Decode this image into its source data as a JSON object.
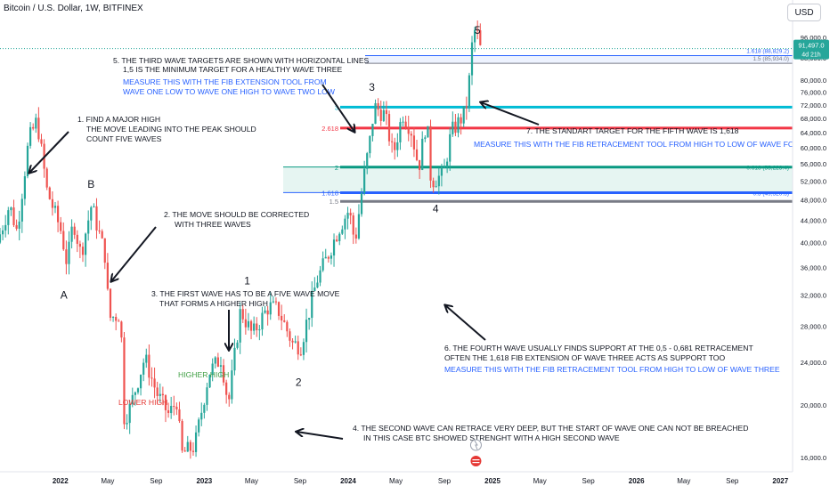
{
  "header": {
    "symbol_title": "Bitcoin / U.S. Dollar, 1W, BITFINEX",
    "currency": "USD"
  },
  "price_badge": {
    "price": "91,497.0",
    "countdown": "4d 21h"
  },
  "colors": {
    "up": "#26a69a",
    "down": "#ef5350",
    "label_text": "#131722",
    "blue_text": "#2962ff",
    "green_text": "#43a047",
    "red_text": "#e53935",
    "cyan_line": "#00bcd4",
    "red_line": "#f23645",
    "teal_line": "#089981",
    "blue_line": "#2962ff",
    "gray_line": "#787b86",
    "price_line": "#26a69a"
  },
  "chart_data": {
    "type": "candlestick",
    "y_scale": "log",
    "ylim": [
      15500,
      100000
    ],
    "x_range": [
      "2021-08-01",
      "2027-02-01"
    ],
    "y_ticks": [
      {
        "v": 96000,
        "label": "96,000.0"
      },
      {
        "v": 88000,
        "label": "88,000.0"
      },
      {
        "v": 80000,
        "label": "80,000.0"
      },
      {
        "v": 76000,
        "label": "76,000.0"
      },
      {
        "v": 72000,
        "label": "72,000.0"
      },
      {
        "v": 68000,
        "label": "68,000.0"
      },
      {
        "v": 64000,
        "label": "64,000.0"
      },
      {
        "v": 60000,
        "label": "60,000.0"
      },
      {
        "v": 56000,
        "label": "56,000.0"
      },
      {
        "v": 52000,
        "label": "52,000.0"
      },
      {
        "v": 48000,
        "label": "48,000.0"
      },
      {
        "v": 44000,
        "label": "44,000.0"
      },
      {
        "v": 40000,
        "label": "40,000.0"
      },
      {
        "v": 36000,
        "label": "36,000.0"
      },
      {
        "v": 32000,
        "label": "32,000.0"
      },
      {
        "v": 28000,
        "label": "28,000.0"
      },
      {
        "v": 24000,
        "label": "24,000.0"
      },
      {
        "v": 20000,
        "label": "20,000.0"
      },
      {
        "v": 16000,
        "label": "16,000.0"
      }
    ],
    "x_ticks": [
      {
        "date": "2022-01-01",
        "label": "2022",
        "bold": true
      },
      {
        "date": "2022-05-01",
        "label": "May",
        "bold": false
      },
      {
        "date": "2022-09-01",
        "label": "Sep",
        "bold": false
      },
      {
        "date": "2023-01-01",
        "label": "2023",
        "bold": true
      },
      {
        "date": "2023-05-01",
        "label": "May",
        "bold": false
      },
      {
        "date": "2023-09-01",
        "label": "Sep",
        "bold": false
      },
      {
        "date": "2024-01-01",
        "label": "2024",
        "bold": true
      },
      {
        "date": "2024-05-01",
        "label": "May",
        "bold": false
      },
      {
        "date": "2024-09-01",
        "label": "Sep",
        "bold": false
      },
      {
        "date": "2025-01-01",
        "label": "2025",
        "bold": true
      },
      {
        "date": "2025-05-01",
        "label": "May",
        "bold": false
      },
      {
        "date": "2025-09-01",
        "label": "Sep",
        "bold": false
      },
      {
        "date": "2026-01-01",
        "label": "2026",
        "bold": true
      },
      {
        "date": "2026-05-01",
        "label": "May",
        "bold": false
      },
      {
        "date": "2026-09-01",
        "label": "Sep",
        "bold": false
      },
      {
        "date": "2027-01-01",
        "label": "2027",
        "bold": true
      }
    ],
    "path_points": [
      [
        "2021-08-01",
        40000
      ],
      [
        "2021-09-01",
        47000
      ],
      [
        "2021-09-20",
        42000
      ],
      [
        "2021-10-20",
        62000
      ],
      [
        "2021-11-10",
        67500
      ],
      [
        "2021-12-05",
        50000
      ],
      [
        "2022-01-10",
        42000
      ],
      [
        "2022-01-25",
        36500
      ],
      [
        "2022-02-10",
        44000
      ],
      [
        "2022-03-01",
        38000
      ],
      [
        "2022-03-28",
        47000
      ],
      [
        "2022-05-01",
        38000
      ],
      [
        "2022-05-12",
        29000
      ],
      [
        "2022-06-10",
        29500
      ],
      [
        "2022-06-18",
        19000
      ],
      [
        "2022-07-01",
        19500
      ],
      [
        "2022-08-10",
        24500
      ],
      [
        "2022-09-10",
        21000
      ],
      [
        "2022-10-10",
        19200
      ],
      [
        "2022-11-01",
        20500
      ],
      [
        "2022-11-10",
        16200
      ],
      [
        "2022-12-15",
        16800
      ],
      [
        "2023-01-20",
        23000
      ],
      [
        "2023-02-20",
        24500
      ],
      [
        "2023-03-10",
        20000
      ],
      [
        "2023-04-10",
        30000
      ],
      [
        "2023-05-10",
        27000
      ],
      [
        "2023-06-20",
        30500
      ],
      [
        "2023-07-15",
        30000
      ],
      [
        "2023-08-20",
        26000
      ],
      [
        "2023-09-10",
        25800
      ],
      [
        "2023-10-20",
        34000
      ],
      [
        "2023-11-15",
        37500
      ],
      [
        "2023-12-15",
        42500
      ],
      [
        "2024-01-10",
        46000
      ],
      [
        "2024-01-25",
        40000
      ],
      [
        "2024-02-15",
        52000
      ],
      [
        "2024-03-05",
        63000
      ],
      [
        "2024-03-14",
        71500
      ],
      [
        "2024-04-10",
        69000
      ],
      [
        "2024-05-01",
        58000
      ],
      [
        "2024-05-25",
        69500
      ],
      [
        "2024-06-15",
        65000
      ],
      [
        "2024-07-05",
        55000
      ],
      [
        "2024-07-25",
        68000
      ],
      [
        "2024-08-05",
        52000
      ],
      [
        "2024-09-06",
        53500
      ],
      [
        "2024-09-25",
        64000
      ],
      [
        "2024-10-15",
        67000
      ],
      [
        "2024-11-01",
        70000
      ],
      [
        "2024-11-10",
        80000
      ],
      [
        "2024-11-15",
        90000
      ],
      [
        "2024-11-22",
        99000
      ],
      [
        "2024-12-01",
        97000
      ],
      [
        "2024-12-02",
        91497
      ]
    ],
    "levels": [
      {
        "name": "fib-3",
        "value": 71300,
        "color": "#00bcd4",
        "label": "3",
        "x_start": "2024-01-01",
        "width": 3
      },
      {
        "name": "fib-2618",
        "value": 65200,
        "color": "#f23645",
        "label": "2.618",
        "x_start": "2024-01-01",
        "width": 3
      },
      {
        "name": "fib-2",
        "value": 55200,
        "color": "#089981",
        "label": "2",
        "x_start": "2024-01-01",
        "width": 3
      },
      {
        "name": "fib-1618",
        "value": 49500,
        "color": "#2962ff",
        "label": "1.618",
        "x_start": "2024-01-01",
        "width": 3
      },
      {
        "name": "fib-15",
        "value": 47700,
        "color": "#787b86",
        "label": "1.5",
        "x_start": "2024-01-01",
        "width": 3
      }
    ],
    "ext_levels": [
      {
        "name": "ext-1618",
        "value": 88829,
        "label": "1.618 (88,829.2)",
        "color": "#2962ff"
      },
      {
        "name": "ext-15",
        "value": 85934,
        "label": "1.5 (85,934.0)",
        "color": "#787b86"
      }
    ],
    "ret_levels": [
      {
        "name": "ret-0618",
        "value": 55223.4,
        "label": "0.618 (55,223.4)",
        "color": "#089981"
      },
      {
        "name": "ret-05",
        "value": 49520.3,
        "label": "0.5 (49,520.3)",
        "color": "#2962ff"
      }
    ],
    "wave_labels": [
      {
        "label": "5",
        "date": "2024-11-24",
        "value": 97500
      },
      {
        "label": "3",
        "date": "2024-03-01",
        "value": 76500
      },
      {
        "label": "4",
        "date": "2024-08-10",
        "value": 45500
      },
      {
        "label": "1",
        "date": "2023-04-20",
        "value": 33500
      },
      {
        "label": "2",
        "date": "2023-08-28",
        "value": 21700
      },
      {
        "label": "A",
        "date": "2022-01-10",
        "value": 31500
      },
      {
        "label": "B",
        "date": "2022-03-20",
        "value": 50500
      }
    ],
    "annotations": [
      {
        "text": "5. THE THIRD WAVE TARGETS ARE SHOWN WITH HORIZONTAL LINES",
        "color": "label",
        "x": 127,
        "y": 71
      },
      {
        "text": "1,5 IS THE MINIMUM TARGET FOR A HEALTHY WAVE THREE",
        "color": "label",
        "x": 138,
        "y": 81
      },
      {
        "text": "MEASURE THIS WITH THE FIB EXTENSION TOOL FROM",
        "color": "blue",
        "x": 138,
        "y": 95
      },
      {
        "text": "WAVE ONE LOW TO WAVE ONE HIGH TO WAVE TWO LOW",
        "color": "blue",
        "x": 138,
        "y": 106
      },
      {
        "text": "1. FIND A MAJOR HIGH",
        "color": "label",
        "x": 87,
        "y": 137
      },
      {
        "text": "THE MOVE LEADING INTO THE PEAK SHOULD",
        "color": "label",
        "x": 97,
        "y": 148
      },
      {
        "text": "COUNT FIVE WAVES",
        "color": "label",
        "x": 97,
        "y": 159
      },
      {
        "text": "7. THE STANDART TARGET FOR THE FIFTH WAVE IS 1,618",
        "color": "label",
        "x": 591,
        "y": 150
      },
      {
        "text": "MEASURE THIS WITH THE FIB RETRACEMENT TOOL FROM HIGH TO LOW OF WAVE FOUR",
        "color": "blue",
        "x": 532,
        "y": 165
      },
      {
        "text": "2. THE MOVE SHOULD BE CORRECTED",
        "color": "label",
        "x": 184,
        "y": 244
      },
      {
        "text": "WITH THREE WAVES",
        "color": "label",
        "x": 196,
        "y": 255
      },
      {
        "text": "3. THE FIRST WAVE HAS TO BE A FIVE WAVE MOVE",
        "color": "label",
        "x": 170,
        "y": 333
      },
      {
        "text": "THAT FORMS A HIGHER HIGH",
        "color": "label",
        "x": 179,
        "y": 344
      },
      {
        "text": "6. THE FOURTH WAVE USUALLY FINDS SUPPORT AT THE 0,5 - 0,681 RETRACEMENT",
        "color": "label",
        "x": 499,
        "y": 394
      },
      {
        "text": "OFTEN THE 1,618 FIB EXTENSION OF WAVE THREE ACTS AS SUPPORT TOO",
        "color": "label",
        "x": 499,
        "y": 405
      },
      {
        "text": "MEASURE THIS WITH THE FIB RETRACEMENT TOOL FROM HIGH TO LOW OF WAVE THREE",
        "color": "blue",
        "x": 499,
        "y": 418
      },
      {
        "text": "HIGHER HIGH",
        "color": "green",
        "x": 200,
        "y": 424
      },
      {
        "text": "LOWER HIGH",
        "color": "red",
        "x": 133,
        "y": 455
      },
      {
        "text": "4. THE SECOND WAVE CAN RETRACE VERY DEEP, BUT THE START OF WAVE ONE CAN NOT BE BREACHED",
        "color": "label",
        "x": 396,
        "y": 484
      },
      {
        "text": "IN THIS CASE BTC SHOWED STRENGHT WITH A HIGH SECOND WAVE",
        "color": "label",
        "x": 408,
        "y": 495
      }
    ],
    "arrows": [
      {
        "from": [
          77,
          148
        ],
        "to": [
          33,
          194
        ]
      },
      {
        "from": [
          175,
          255
        ],
        "to": [
          125,
          316
        ]
      },
      {
        "from": [
          362,
          95
        ],
        "to": [
          398,
          148
        ]
      },
      {
        "from": [
          605,
          140
        ],
        "to": [
          540,
          115
        ]
      },
      {
        "from": [
          257,
          348
        ],
        "to": [
          257,
          393
        ]
      },
      {
        "from": [
          545,
          382
        ],
        "to": [
          500,
          343
        ]
      },
      {
        "from": [
          385,
          493
        ],
        "to": [
          333,
          485
        ]
      }
    ],
    "grid": false,
    "legend": "none"
  }
}
